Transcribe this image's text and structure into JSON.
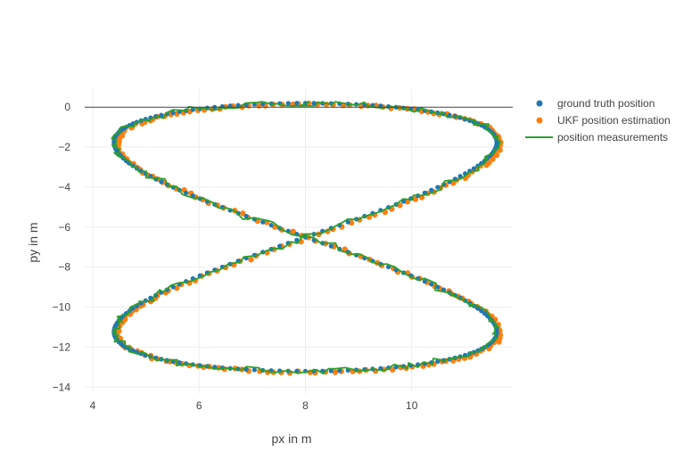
{
  "chart_data": {
    "type": "scatter",
    "title": "",
    "xlabel": "px in m",
    "ylabel": "py in m",
    "xlim": [
      3.85,
      11.9
    ],
    "ylim": [
      -14.3,
      0.9
    ],
    "x_ticks": [
      4,
      6,
      8,
      10
    ],
    "y_ticks": [
      0,
      -2,
      -4,
      -6,
      -8,
      -10,
      -12,
      -14
    ],
    "x_tick_labels": [
      "4",
      "6",
      "8",
      "10"
    ],
    "y_tick_labels": [
      "0",
      "−2",
      "−4",
      "−6",
      "−8",
      "−10",
      "−12",
      "−14"
    ],
    "grid": true,
    "zero_line": true,
    "legend_position": "top-right",
    "curve": {
      "shape": "figure-eight",
      "center": [
        8.0,
        -6.5
      ],
      "half_width": 3.6,
      "half_height": 6.7,
      "x_range": [
        4.35,
        11.45
      ],
      "y_range": [
        -13.35,
        0.3
      ],
      "points": 280
    },
    "series": [
      {
        "name": "ground truth position",
        "mode": "markers",
        "color": "#1f77b4"
      },
      {
        "name": "UKF position estimation",
        "mode": "markers",
        "color": "#ff7f0e"
      },
      {
        "name": "position measurements",
        "mode": "lines",
        "color": "#2ca02c"
      }
    ]
  }
}
